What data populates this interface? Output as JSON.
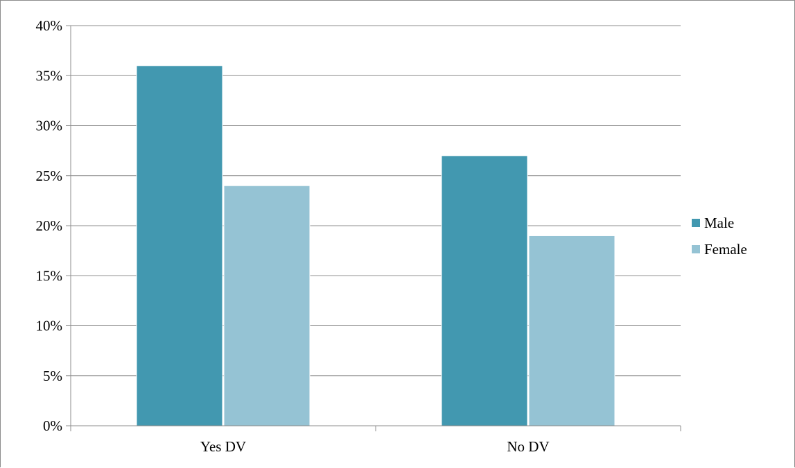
{
  "chart_data": {
    "type": "bar",
    "categories": [
      "Yes DV",
      "No DV"
    ],
    "series": [
      {
        "name": "Male",
        "values": [
          36,
          27
        ],
        "color": "#4298b0"
      },
      {
        "name": "Female",
        "values": [
          24,
          19
        ],
        "color": "#95c3d4"
      }
    ],
    "ylim": [
      0,
      40
    ],
    "yticks": [
      0,
      5,
      10,
      15,
      20,
      25,
      30,
      35,
      40
    ],
    "ytick_labels": [
      "0%",
      "5%",
      "10%",
      "15%",
      "20%",
      "25%",
      "30%",
      "35%",
      "40%"
    ],
    "title": "",
    "xlabel": "",
    "ylabel": "",
    "grid": true,
    "legend_position": "right",
    "gridline_color": "#8c8c8c",
    "axis_color": "#8c8c8c"
  }
}
